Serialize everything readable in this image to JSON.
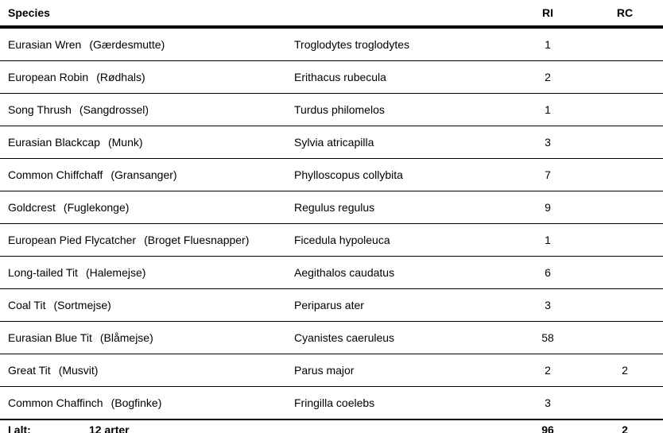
{
  "table": {
    "columns": {
      "species": "Species",
      "ri": "RI",
      "rc": "RC"
    },
    "rows": [
      {
        "name_en": "Eurasian Wren",
        "name_da": "(Gærdesmutte)",
        "sci": "Troglodytes troglodytes",
        "ri": "1",
        "rc": ""
      },
      {
        "name_en": "European Robin",
        "name_da": "(Rødhals)",
        "sci": "Erithacus rubecula",
        "ri": "2",
        "rc": ""
      },
      {
        "name_en": "Song Thrush",
        "name_da": "(Sangdrossel)",
        "sci": "Turdus philomelos",
        "ri": "1",
        "rc": ""
      },
      {
        "name_en": "Eurasian Blackcap",
        "name_da": "(Munk)",
        "sci": "Sylvia atricapilla",
        "ri": "3",
        "rc": ""
      },
      {
        "name_en": "Common Chiffchaff",
        "name_da": "(Gransanger)",
        "sci": "Phylloscopus collybita",
        "ri": "7",
        "rc": ""
      },
      {
        "name_en": "Goldcrest",
        "name_da": "(Fuglekonge)",
        "sci": "Regulus regulus",
        "ri": "9",
        "rc": ""
      },
      {
        "name_en": "European Pied Flycatcher",
        "name_da": "(Broget Fluesnapper)",
        "sci": "Ficedula hypoleuca",
        "ri": "1",
        "rc": ""
      },
      {
        "name_en": "Long-tailed Tit",
        "name_da": "(Halemejse)",
        "sci": "Aegithalos caudatus",
        "ri": "6",
        "rc": ""
      },
      {
        "name_en": "Coal Tit",
        "name_da": "(Sortmejse)",
        "sci": "Periparus ater",
        "ri": "3",
        "rc": ""
      },
      {
        "name_en": "Eurasian Blue Tit",
        "name_da": "(Blåmejse)",
        "sci": "Cyanistes caeruleus",
        "ri": "58",
        "rc": ""
      },
      {
        "name_en": "Great Tit",
        "name_da": "(Musvit)",
        "sci": "Parus major",
        "ri": "2",
        "rc": "2"
      },
      {
        "name_en": "Common Chaffinch",
        "name_da": "(Bogfinke)",
        "sci": "Fringilla coelebs",
        "ri": "3",
        "rc": ""
      }
    ],
    "footer": {
      "label": "I alt:",
      "count": "12 arter",
      "ri_total": "96",
      "rc_total": "2"
    }
  }
}
